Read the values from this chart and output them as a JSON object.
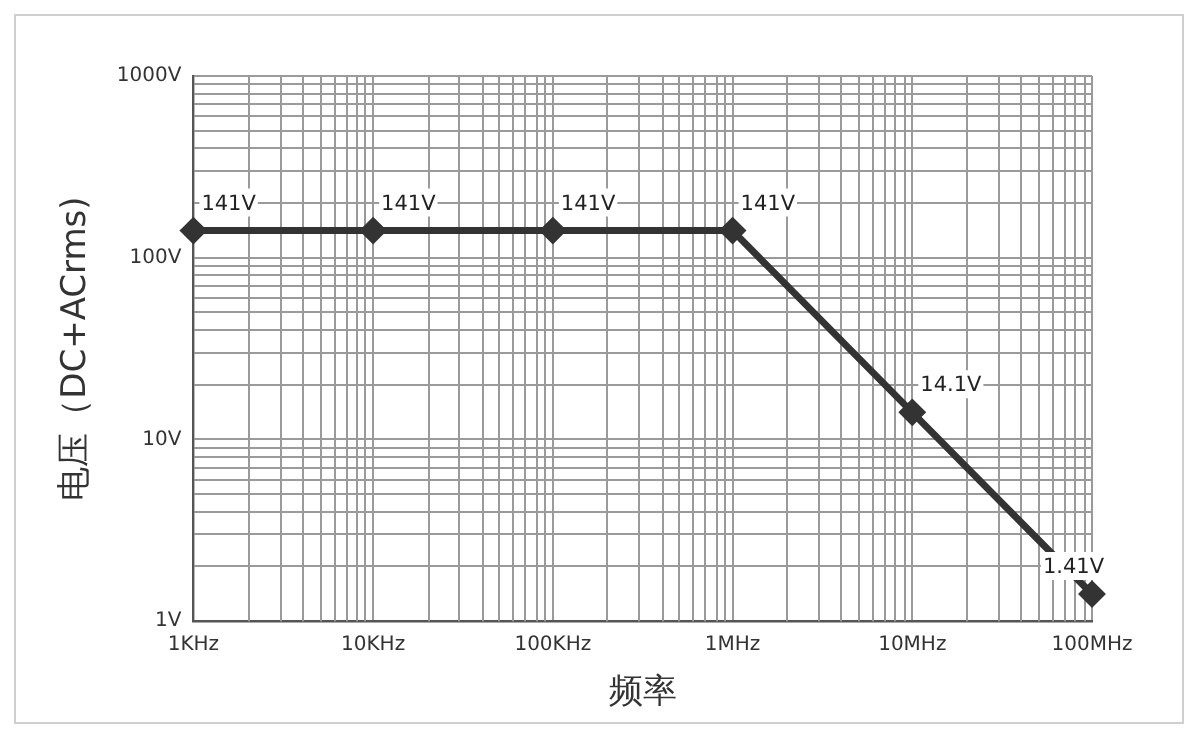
{
  "chart_data": {
    "type": "line",
    "xlabel": "频率",
    "ylabel": "电压（DC+ACrms)",
    "categories": [
      "1KHz",
      "10KHz",
      "100KHz",
      "1MHz",
      "10MHz",
      "100MHz"
    ],
    "series": [
      {
        "color": "#333333",
        "values": [
          141,
          141,
          141,
          141,
          14.1,
          1.41
        ],
        "value_labels": [
          "141V",
          "141V",
          "141V",
          "141V",
          "14.1V",
          "1.41V"
        ]
      }
    ],
    "log": "y",
    "ylim": [
      1,
      1000
    ],
    "yticks": [
      {
        "value": 1,
        "label": "1V"
      },
      {
        "value": 2,
        "label": null
      },
      {
        "value": 3,
        "label": null
      },
      {
        "value": 4,
        "label": null
      },
      {
        "value": 5,
        "label": null
      },
      {
        "value": 6,
        "label": null
      },
      {
        "value": 7,
        "label": null
      },
      {
        "value": 8,
        "label": null
      },
      {
        "value": 9,
        "label": null
      },
      {
        "value": 10,
        "label": "10V"
      },
      {
        "value": 20,
        "label": null
      },
      {
        "value": 30,
        "label": null
      },
      {
        "value": 40,
        "label": null
      },
      {
        "value": 50,
        "label": null
      },
      {
        "value": 60,
        "label": null
      },
      {
        "value": 70,
        "label": null
      },
      {
        "value": 80,
        "label": null
      },
      {
        "value": 90,
        "label": null
      },
      {
        "value": 100,
        "label": "100V"
      },
      {
        "value": 200,
        "label": null
      },
      {
        "value": 300,
        "label": null
      },
      {
        "value": 400,
        "label": null
      },
      {
        "value": 500,
        "label": null
      },
      {
        "value": 600,
        "label": null
      },
      {
        "value": 700,
        "label": null
      },
      {
        "value": 800,
        "label": null
      },
      {
        "value": 900,
        "label": null
      },
      {
        "value": 1000,
        "label": "1000V"
      }
    ],
    "grid": true,
    "marker": "diamond",
    "line_style": "solid",
    "legend": false
  }
}
